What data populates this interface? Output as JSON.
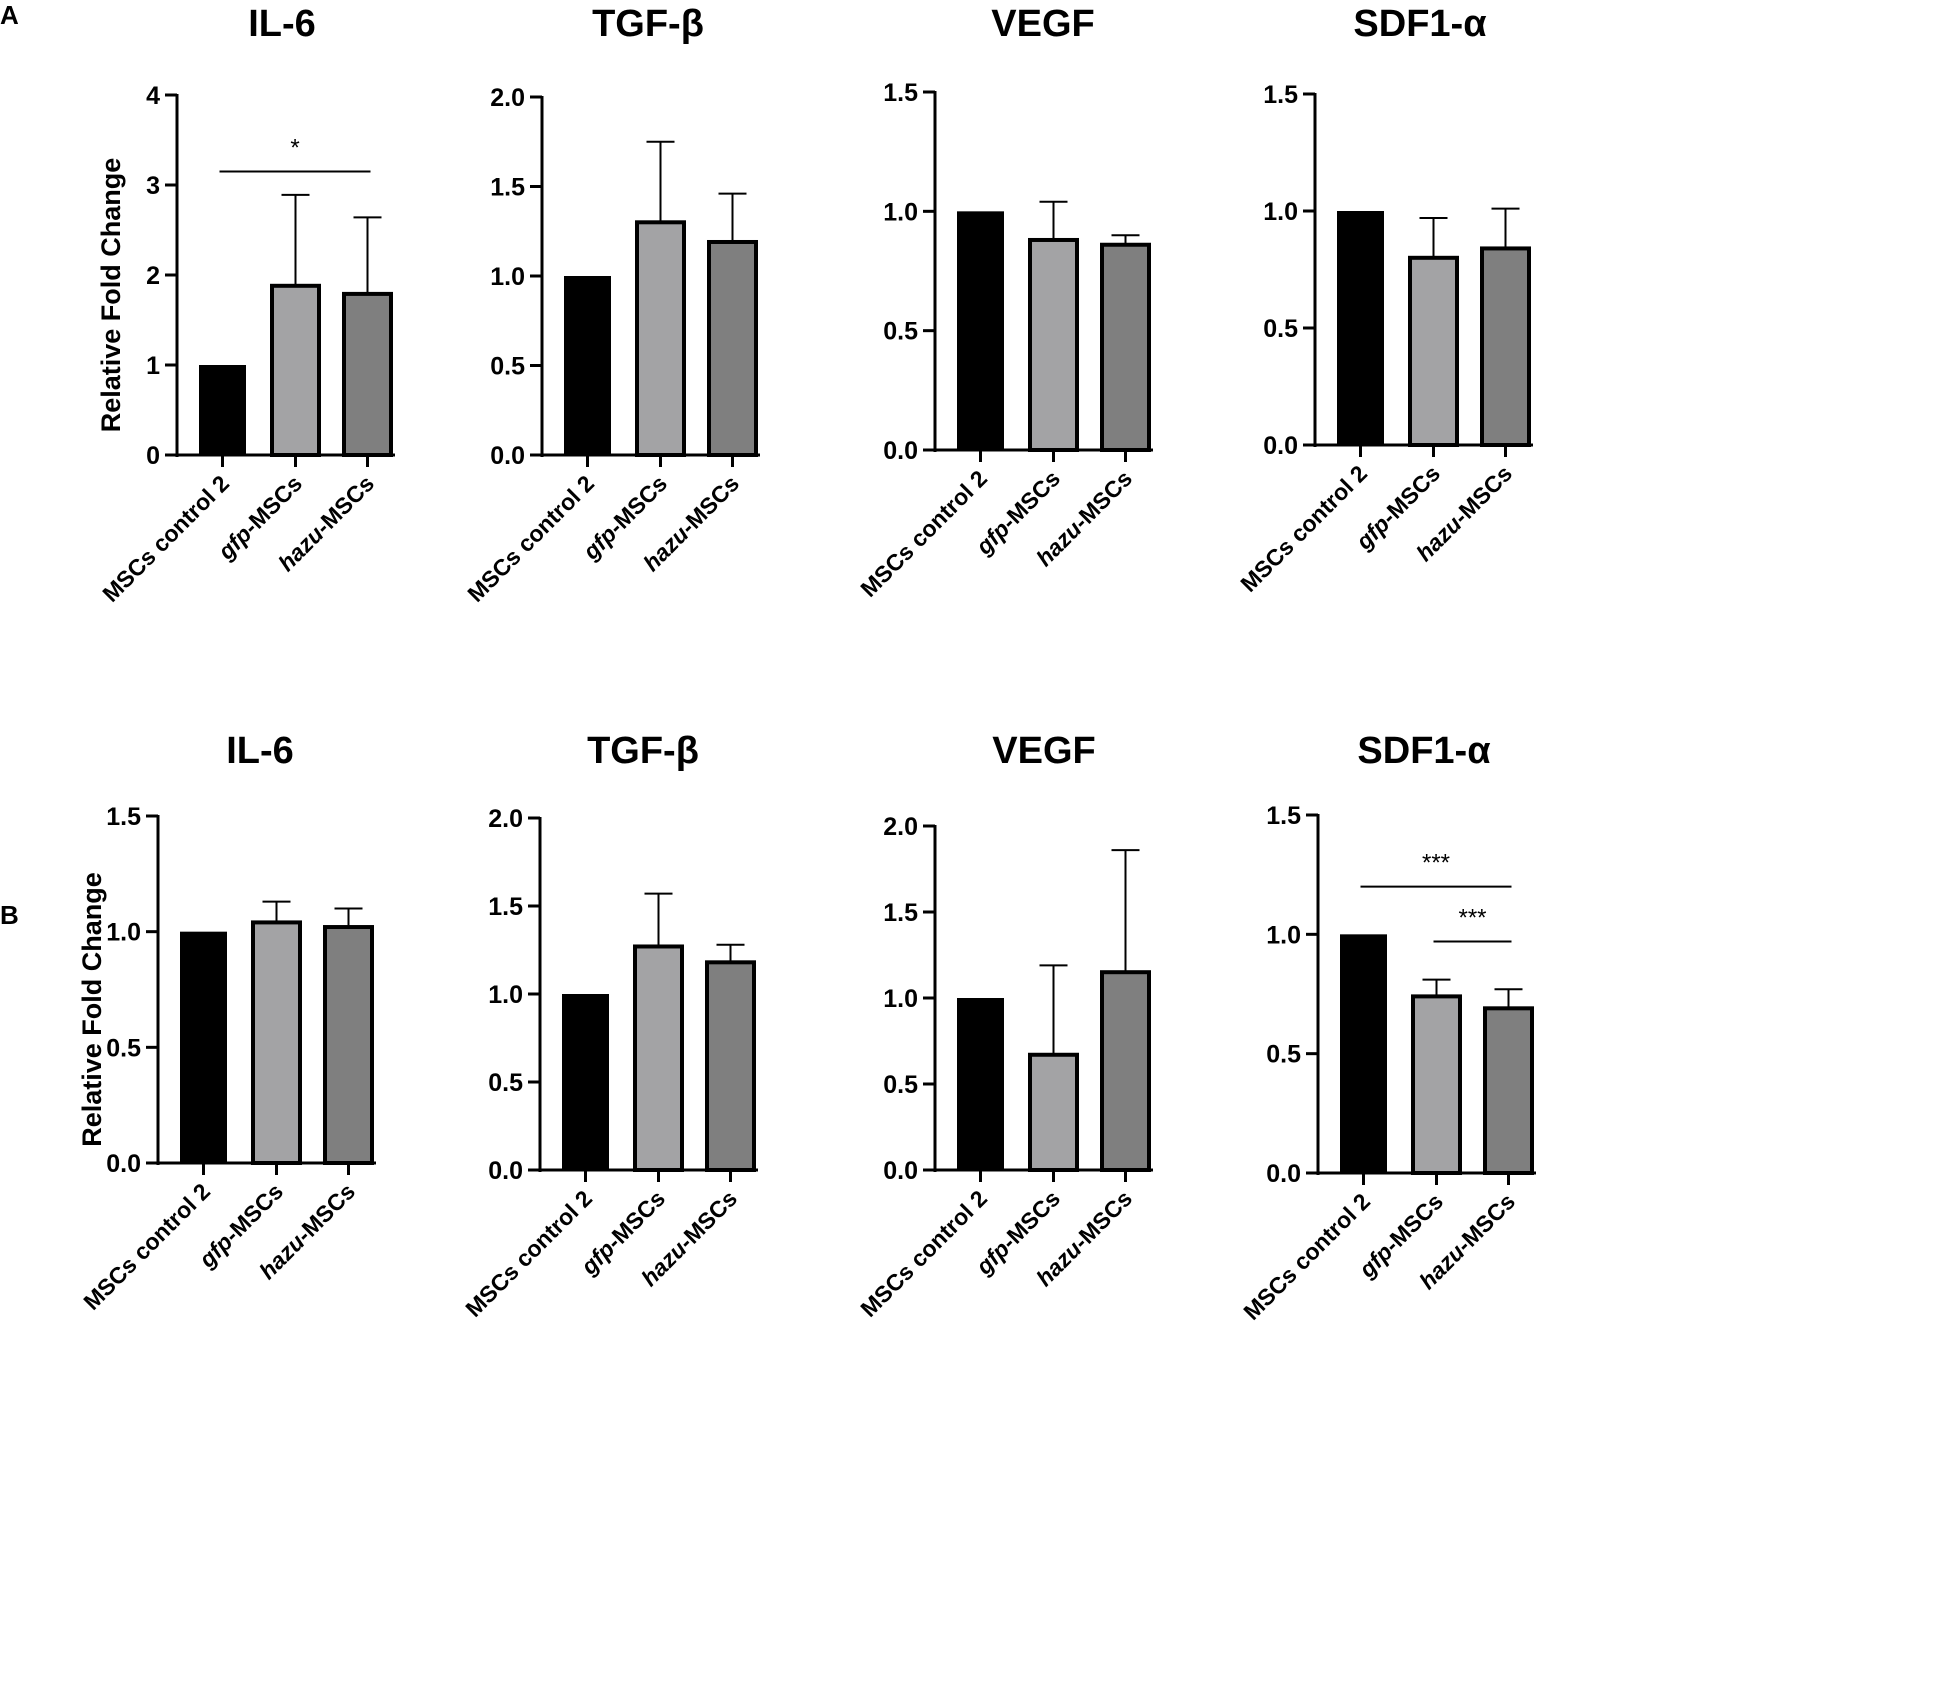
{
  "panel_labels": [
    "A",
    "B"
  ],
  "chart_data": [
    {
      "type": "bar",
      "panel": "A",
      "title": "IL-6",
      "ylabel": "Relative Fold Change",
      "categories": [
        "MSCs control 2",
        "gfp-MSCs",
        "hazu-MSCs"
      ],
      "values": [
        1.0,
        1.88,
        1.79
      ],
      "errors": [
        0,
        1.01,
        0.85
      ],
      "ylim": [
        0,
        4
      ],
      "ticks": [
        "0",
        "1",
        "2",
        "3",
        "4"
      ],
      "tick_values": [
        0,
        1,
        2,
        3,
        4
      ],
      "bar_colors": [
        "#000000",
        "#a3a3a5",
        "#7f7f7f"
      ],
      "significance": [
        {
          "label": "*",
          "from": 0,
          "to": 2,
          "y": 3.15
        }
      ]
    },
    {
      "type": "bar",
      "panel": "A",
      "title": "TGF-β",
      "ylabel": "",
      "categories": [
        "MSCs control 2",
        "gfp-MSCs",
        "hazu-MSCs"
      ],
      "values": [
        1.0,
        1.3,
        1.19
      ],
      "errors": [
        0,
        0.45,
        0.27
      ],
      "ylim": [
        0,
        2.0
      ],
      "ticks": [
        "0.0",
        "0.5",
        "1.0",
        "1.5",
        "2.0"
      ],
      "tick_values": [
        0,
        0.5,
        1.0,
        1.5,
        2.0
      ],
      "bar_colors": [
        "#000000",
        "#a3a3a5",
        "#7f7f7f"
      ],
      "significance": []
    },
    {
      "type": "bar",
      "panel": "A",
      "title": "VEGF",
      "ylabel": "",
      "categories": [
        "MSCs control 2",
        "gfp-MSCs",
        "hazu-MSCs"
      ],
      "values": [
        1.0,
        0.88,
        0.86
      ],
      "errors": [
        0,
        0.16,
        0.04
      ],
      "ylim": [
        0,
        1.5
      ],
      "ticks": [
        "0.0",
        "0.5",
        "1.0",
        "1.5"
      ],
      "tick_values": [
        0,
        0.5,
        1.0,
        1.5
      ],
      "bar_colors": [
        "#000000",
        "#a3a3a5",
        "#7f7f7f"
      ],
      "significance": []
    },
    {
      "type": "bar",
      "panel": "A",
      "title": "SDF1-α",
      "ylabel": "",
      "categories": [
        "MSCs control 2",
        "gfp-MSCs",
        "hazu-MSCs"
      ],
      "values": [
        1.0,
        0.8,
        0.84
      ],
      "errors": [
        0,
        0.17,
        0.17
      ],
      "ylim": [
        0,
        1.5
      ],
      "ticks": [
        "0.0",
        "0.5",
        "1.0",
        "1.5"
      ],
      "tick_values": [
        0,
        0.5,
        1.0,
        1.5
      ],
      "bar_colors": [
        "#000000",
        "#a3a3a5",
        "#7f7f7f"
      ],
      "significance": []
    },
    {
      "type": "bar",
      "panel": "B",
      "title": "IL-6",
      "ylabel": "Relative Fold Change",
      "categories": [
        "MSCs control 2",
        "gfp-MSCs",
        "hazu-MSCs"
      ],
      "values": [
        1.0,
        1.04,
        1.02
      ],
      "errors": [
        0,
        0.09,
        0.08
      ],
      "ylim": [
        0,
        1.5
      ],
      "ticks": [
        "0.0",
        "0.5",
        "1.0",
        "1.5"
      ],
      "tick_values": [
        0,
        0.5,
        1.0,
        1.5
      ],
      "bar_colors": [
        "#000000",
        "#a3a3a5",
        "#7f7f7f"
      ],
      "significance": []
    },
    {
      "type": "bar",
      "panel": "B",
      "title": "TGF-β",
      "ylabel": "",
      "categories": [
        "MSCs control 2",
        "gfp-MSCs",
        "hazu-MSCs"
      ],
      "values": [
        1.0,
        1.27,
        1.18
      ],
      "errors": [
        0,
        0.3,
        0.1
      ],
      "ylim": [
        0,
        2.0
      ],
      "ticks": [
        "0.0",
        "0.5",
        "1.0",
        "1.5",
        "2.0"
      ],
      "tick_values": [
        0,
        0.5,
        1.0,
        1.5,
        2.0
      ],
      "bar_colors": [
        "#000000",
        "#a3a3a5",
        "#7f7f7f"
      ],
      "significance": []
    },
    {
      "type": "bar",
      "panel": "B",
      "title": "VEGF",
      "ylabel": "",
      "categories": [
        "MSCs control 2",
        "gfp-MSCs",
        "hazu-MSCs"
      ],
      "values": [
        1.0,
        0.67,
        1.15
      ],
      "errors": [
        0,
        0.52,
        0.71
      ],
      "ylim": [
        0,
        2.0
      ],
      "ticks": [
        "0.0",
        "0.5",
        "1.0",
        "1.5",
        "2.0"
      ],
      "tick_values": [
        0,
        0.5,
        1.0,
        1.5,
        2.0
      ],
      "bar_colors": [
        "#000000",
        "#a3a3a5",
        "#7f7f7f"
      ],
      "significance": []
    },
    {
      "type": "bar",
      "panel": "B",
      "title": "SDF1-α",
      "ylabel": "",
      "categories": [
        "MSCs control 2",
        "gfp-MSCs",
        "hazu-MSCs"
      ],
      "values": [
        1.0,
        0.74,
        0.69
      ],
      "errors": [
        0,
        0.07,
        0.08
      ],
      "ylim": [
        0,
        1.5
      ],
      "ticks": [
        "0.0",
        "0.5",
        "1.0",
        "1.5"
      ],
      "tick_values": [
        0,
        0.5,
        1.0,
        1.5
      ],
      "bar_colors": [
        "#000000",
        "#a3a3a5",
        "#7f7f7f"
      ],
      "significance": [
        {
          "label": "***",
          "from": 0,
          "to": 2,
          "y": 1.2
        },
        {
          "label": "***",
          "from": 1,
          "to": 2,
          "y": 0.97
        }
      ]
    }
  ]
}
